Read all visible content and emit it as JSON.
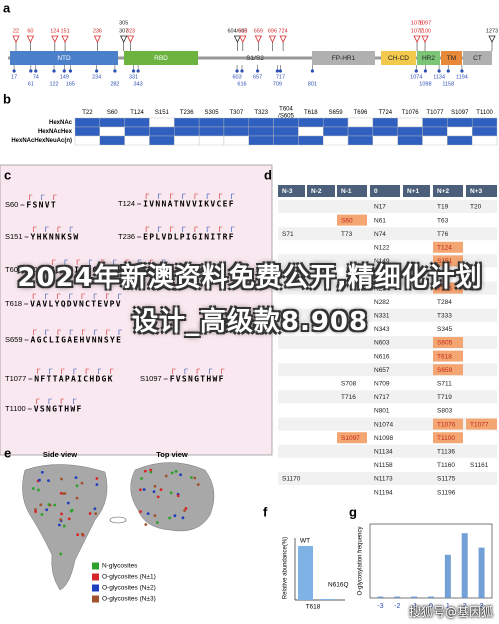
{
  "overlay_title": "2024年新澳资料免费公开,精细化计划设计_高级款8.908",
  "watermark": "搜狐号@基因狐",
  "panel_a": {
    "label": "a",
    "domains": [
      "NTD",
      "RBD",
      "S1/S2",
      "FP-HR1",
      "CH-CD",
      "HR2",
      "TM",
      "CT"
    ],
    "o_sites": [
      {
        "lines": [
          "22"
        ],
        "color": "#d62728"
      },
      {
        "lines": [
          "60"
        ],
        "color": "#d62728"
      },
      {
        "lines": [
          "124"
        ],
        "color": "#d62728"
      },
      {
        "lines": [
          "151"
        ],
        "color": "#d62728"
      },
      {
        "lines": [
          "236"
        ],
        "color": "#d62728"
      },
      {
        "lines": [
          "305",
          "307"
        ],
        "color": "#222222"
      },
      {
        "lines": [
          "323"
        ],
        "color": "#d62728"
      },
      {
        "lines": [
          "604/605"
        ],
        "color": "#222222"
      },
      {
        "lines": [
          "618"
        ],
        "color": "#d62728"
      },
      {
        "lines": [
          "659"
        ],
        "color": "#d62728"
      },
      {
        "lines": [
          "696"
        ],
        "color": "#d62728"
      },
      {
        "lines": [
          "724"
        ],
        "color": "#d62728"
      },
      {
        "lines": [
          "1076",
          "1077"
        ],
        "color": "#d62728"
      },
      {
        "lines": [
          "1097",
          "1100"
        ],
        "color": "#d62728"
      },
      {
        "lines": [
          "1273"
        ],
        "color": "#222222"
      }
    ],
    "n_sites": [
      "17",
      "61",
      "74",
      "122",
      "149",
      "165",
      "234",
      "282",
      "331",
      "343",
      "603",
      "616",
      "657",
      "709",
      "717",
      "801",
      "1074",
      "1098",
      "1134",
      "1158",
      "1194"
    ]
  },
  "panel_b": {
    "label": "b",
    "columns": [
      "T22",
      "S60",
      "T124",
      "S151",
      "T236",
      "S305",
      "T307",
      "T323",
      "T604\n/S605",
      "T618",
      "S659",
      "T696",
      "T724",
      "T1076",
      "T1077",
      "S1097",
      "T1100"
    ],
    "rows": [
      {
        "name": "HexNAc",
        "cells": [
          1,
          1,
          1,
          0,
          1,
          1,
          1,
          1,
          1,
          1,
          1,
          0,
          1,
          0,
          1,
          1,
          1
        ]
      },
      {
        "name": "HexNAcHex",
        "cells": [
          1,
          0,
          1,
          1,
          1,
          1,
          1,
          1,
          1,
          0,
          1,
          1,
          1,
          1,
          1,
          0,
          1
        ]
      },
      {
        "name": "HexNAcHexNeuAc(n)",
        "cells": [
          0,
          1,
          0,
          1,
          0,
          0,
          0,
          1,
          1,
          1,
          0,
          1,
          0,
          1,
          0,
          1,
          0
        ]
      }
    ]
  },
  "panel_c": {
    "label": "c",
    "entries": [
      {
        "site": "S60",
        "sequence": "FSNVT"
      },
      {
        "site": "T124",
        "sequence": "IVNNATNVVIKVCEF"
      },
      {
        "site": "S151",
        "sequence": "YHKNNKSW"
      },
      {
        "site": "T236",
        "sequence": "EPLVDLPIGINITRF"
      },
      {
        "site": "T604/S605",
        "sequence": "GVSVITPGTNTSNQVAVLY"
      },
      {
        "site": "T618",
        "sequence": "VAVLYQDVNCTEVPV"
      },
      {
        "site": "S659",
        "sequence": "AGCLIGAEHVNNSYE"
      },
      {
        "site": "T1077",
        "sequence": "NFTTAPAICHDGK"
      },
      {
        "site": "S1097",
        "sequence": "FVSNGTHWF"
      },
      {
        "site": "T1100",
        "sequence": "VSNGTHWF"
      }
    ]
  },
  "panel_d": {
    "label": "d",
    "headers": [
      "N-3",
      "N-2",
      "N-1",
      "0",
      "N+1",
      "N+2",
      "N+3"
    ],
    "rows": [
      [
        null,
        null,
        null,
        "N17",
        null,
        "T19",
        "T20"
      ],
      [
        null,
        null,
        {
          "text": "S60",
          "highlight": true
        },
        "N61",
        null,
        "T63",
        null
      ],
      [
        "S71",
        null,
        "T73",
        "N74",
        null,
        "T76",
        null
      ],
      [
        null,
        null,
        null,
        "N122",
        null,
        {
          "text": "T124",
          "highlight": true
        },
        null
      ],
      [
        null,
        null,
        null,
        "N149",
        null,
        {
          "text": "S151",
          "highlight": true
        },
        null
      ],
      [
        "S162",
        null,
        null,
        "N165",
        null,
        "T167",
        null
      ],
      [
        null,
        null,
        null,
        "N234",
        null,
        {
          "text": "T236",
          "highlight": true
        },
        null
      ],
      [
        null,
        null,
        null,
        "N282",
        null,
        "T284",
        null
      ],
      [
        null,
        null,
        null,
        "N331",
        null,
        "T333",
        null
      ],
      [
        null,
        null,
        null,
        "N343",
        null,
        "S345",
        null
      ],
      [
        null,
        null,
        null,
        "N603",
        null,
        {
          "text": "S605",
          "highlight": true
        },
        null
      ],
      [
        null,
        null,
        null,
        "N616",
        null,
        {
          "text": "T618",
          "highlight": true
        },
        null
      ],
      [
        null,
        null,
        null,
        "N657",
        null,
        {
          "text": "S659",
          "highlight": true
        },
        null
      ],
      [
        null,
        null,
        "S708",
        "N709",
        null,
        "S711",
        null
      ],
      [
        null,
        null,
        "T716",
        "N717",
        null,
        "T719",
        null
      ],
      [
        null,
        null,
        null,
        "N801",
        null,
        "S803",
        null
      ],
      [
        null,
        null,
        null,
        "N1074",
        null,
        {
          "text": "T1076",
          "highlight": true
        },
        {
          "text": "T1077",
          "highlight": true
        }
      ],
      [
        null,
        null,
        {
          "text": "S1097",
          "highlight": true
        },
        "N1098",
        null,
        {
          "text": "T1100",
          "highlight": true
        },
        null
      ],
      [
        null,
        null,
        null,
        "N1134",
        null,
        "T1136",
        null
      ],
      [
        null,
        null,
        null,
        "N1158",
        null,
        "T1160",
        "S1161"
      ],
      [
        "S1170",
        null,
        null,
        "N1173",
        null,
        "S1175",
        null
      ],
      [
        null,
        null,
        null,
        "N1194",
        null,
        "S1196",
        null
      ]
    ]
  },
  "panel_e": {
    "label": "e",
    "views": [
      "Side view",
      "Top view"
    ],
    "legend": [
      {
        "label": "N-glycosites",
        "color": "#2ca02c"
      },
      {
        "label": "O-glycosites (N±1)",
        "color": "#d62728"
      },
      {
        "label": "O-glycosites (N±2)",
        "color": "#1f3fbf"
      },
      {
        "label": "O-glycosites (N±3)",
        "color": "#a0522d"
      }
    ]
  },
  "panel_f": {
    "label": "f",
    "ylabel": "Relative abundance(%)",
    "xlabel": "T618",
    "ylim": [
      0,
      30
    ],
    "bars": [
      {
        "name": "WT",
        "value": 27,
        "color": "#7fb2e5"
      },
      {
        "name": "N616Q",
        "value": 0.5,
        "color": "#7fb2e5"
      }
    ]
  },
  "panel_g": {
    "label": "g",
    "ylabel": "O-glycosylation frequency",
    "xticks": [
      -3,
      -2,
      -1,
      0,
      1,
      2,
      3
    ],
    "values": [
      0.02,
      0.02,
      0.02,
      0.02,
      0.6,
      0.9,
      0.7
    ],
    "ylim": [
      0,
      1
    ],
    "color": "#5b8fd0"
  }
}
